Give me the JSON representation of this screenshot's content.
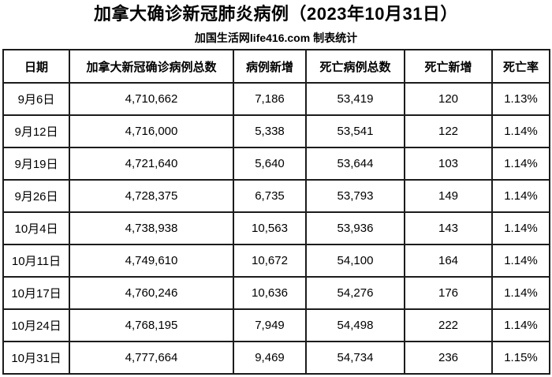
{
  "page": {
    "title": "加拿大确诊新冠肺炎病例（2023年10月31日）",
    "subtitle": "加国生活网life416.com 制表统计"
  },
  "colors": {
    "background": "#ffffff",
    "text": "#000000",
    "border": "#1c1c1c"
  },
  "table": {
    "columns": [
      "日期",
      "加拿大新冠确诊病例总数",
      "病例新增",
      "死亡病例总数",
      "死亡新增",
      "死亡率"
    ],
    "rows": [
      [
        "9月6日",
        "4,710,662",
        "7,186",
        "53,419",
        "120",
        "1.13%"
      ],
      [
        "9月12日",
        "4,716,000",
        "5,338",
        "53,541",
        "122",
        "1.14%"
      ],
      [
        "9月19日",
        "4,721,640",
        "5,640",
        "53,644",
        "103",
        "1.14%"
      ],
      [
        "9月26日",
        "4,728,375",
        "6,735",
        "53,793",
        "149",
        "1.14%"
      ],
      [
        "10月4日",
        "4,738,938",
        "10,563",
        "53,936",
        "143",
        "1.14%"
      ],
      [
        "10月11日",
        "4,749,610",
        "10,672",
        "54,100",
        "164",
        "1.14%"
      ],
      [
        "10月17日",
        "4,760,246",
        "10,636",
        "54,276",
        "176",
        "1.14%"
      ],
      [
        "10月24日",
        "4,768,195",
        "7,949",
        "54,498",
        "222",
        "1.14%"
      ],
      [
        "10月31日",
        "4,777,664",
        "9,469",
        "54,734",
        "236",
        "1.15%"
      ]
    ]
  },
  "chart_data": {
    "type": "table",
    "title": "加拿大确诊新冠肺炎病例（2023年10月31日）",
    "subtitle": "加国生活网life416.com 制表统计",
    "columns": [
      "日期",
      "加拿大新冠确诊病例总数",
      "病例新增",
      "死亡病例总数",
      "死亡新增",
      "死亡率"
    ],
    "rows": [
      {
        "date": "9月6日",
        "total_cases": 4710662,
        "new_cases": 7186,
        "total_deaths": 53419,
        "new_deaths": 120,
        "death_rate": "1.13%"
      },
      {
        "date": "9月12日",
        "total_cases": 4716000,
        "new_cases": 5338,
        "total_deaths": 53541,
        "new_deaths": 122,
        "death_rate": "1.14%"
      },
      {
        "date": "9月19日",
        "total_cases": 4721640,
        "new_cases": 5640,
        "total_deaths": 53644,
        "new_deaths": 103,
        "death_rate": "1.14%"
      },
      {
        "date": "9月26日",
        "total_cases": 4728375,
        "new_cases": 6735,
        "total_deaths": 53793,
        "new_deaths": 149,
        "death_rate": "1.14%"
      },
      {
        "date": "10月4日",
        "total_cases": 4738938,
        "new_cases": 10563,
        "total_deaths": 53936,
        "new_deaths": 143,
        "death_rate": "1.14%"
      },
      {
        "date": "10月11日",
        "total_cases": 4749610,
        "new_cases": 10672,
        "total_deaths": 54100,
        "new_deaths": 164,
        "death_rate": "1.14%"
      },
      {
        "date": "10月17日",
        "total_cases": 4760246,
        "new_cases": 10636,
        "total_deaths": 54276,
        "new_deaths": 176,
        "death_rate": "1.14%"
      },
      {
        "date": "10月24日",
        "total_cases": 4768195,
        "new_cases": 7949,
        "total_deaths": 54498,
        "new_deaths": 222,
        "death_rate": "1.14%"
      },
      {
        "date": "10月31日",
        "total_cases": 4777664,
        "new_cases": 9469,
        "total_deaths": 54734,
        "new_deaths": 236,
        "death_rate": "1.15%"
      }
    ]
  }
}
